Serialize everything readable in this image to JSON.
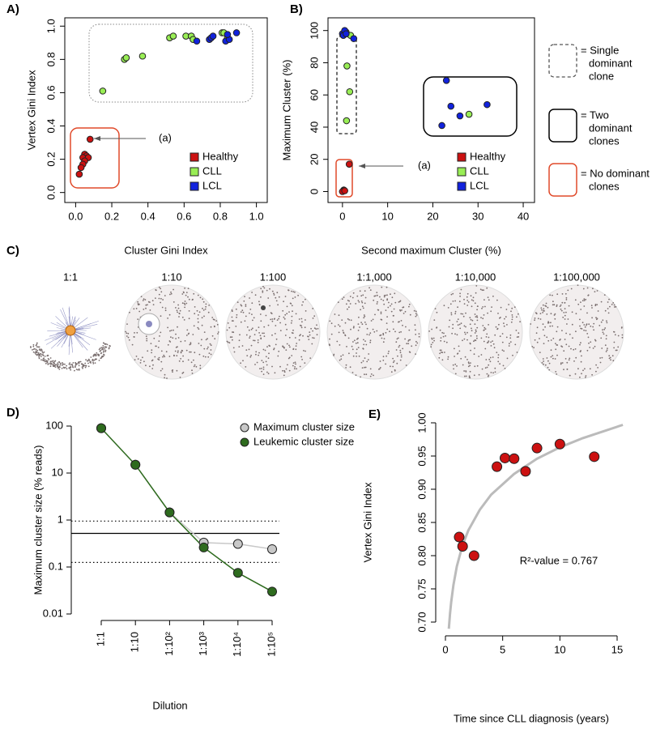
{
  "chart_data": [
    {
      "type": "scatter",
      "panel": "A)",
      "xlabel": "Cluster Gini Index",
      "ylabel": "Vertex Gini Index",
      "xlim": [
        -0.06,
        1.06
      ],
      "ylim": [
        -0.06,
        1.05
      ],
      "xticks": [
        {
          "value": 0,
          "label": "0.0"
        },
        0.2,
        0.4,
        0.6,
        0.8,
        {
          "value": 1,
          "label": "1.0"
        }
      ],
      "yticks": [
        {
          "value": 0,
          "label": "0.0"
        },
        0.2,
        0.4,
        0.6,
        0.8,
        {
          "value": 1,
          "label": "1.0"
        }
      ],
      "legend": "lower right",
      "annotation": "(a)",
      "series": [
        {
          "name": "Healthy",
          "color": "#cc1111",
          "x": [
            0.08,
            0.05,
            0.06,
            0.04,
            0.07,
            0.05,
            0.04,
            0.03,
            0.02
          ],
          "values": [
            0.32,
            0.23,
            0.22,
            0.21,
            0.21,
            0.19,
            0.17,
            0.15,
            0.11
          ]
        },
        {
          "name": "CLL",
          "color": "#99ee55",
          "x": [
            0.15,
            0.27,
            0.28,
            0.37,
            0.52,
            0.54,
            0.61,
            0.64,
            0.65,
            0.81,
            0.82,
            0.84
          ],
          "values": [
            0.61,
            0.8,
            0.81,
            0.82,
            0.93,
            0.94,
            0.94,
            0.94,
            0.92,
            0.96,
            0.96,
            0.93
          ]
        },
        {
          "name": "LCL",
          "color": "#1122dd",
          "x": [
            0.67,
            0.74,
            0.75,
            0.76,
            0.83,
            0.85,
            0.84,
            0.89
          ],
          "values": [
            0.91,
            0.92,
            0.93,
            0.94,
            0.91,
            0.92,
            0.95,
            0.96
          ]
        }
      ]
    },
    {
      "type": "scatter",
      "panel": "B)",
      "xlabel": "Second maximum Cluster (%)",
      "ylabel": "Maximum Cluster (%)",
      "xlim": [
        -3.2,
        42.5
      ],
      "ylim": [
        -6.8,
        107.9
      ],
      "xticks": [
        0,
        10,
        20,
        30,
        40
      ],
      "yticks": [
        0,
        20,
        40,
        60,
        80,
        100
      ],
      "legend": "lower right",
      "annotation": "(a)",
      "region_legend": [
        [
          "= Single",
          "dominant",
          "clone"
        ],
        [
          "= Two",
          "dominant",
          "clones"
        ],
        [
          "= No dominant",
          "clones"
        ]
      ],
      "series": [
        {
          "name": "Healthy",
          "color": "#cc1111",
          "x": [
            1.5,
            0.3,
            0.2,
            0,
            0.5
          ],
          "values": [
            17,
            1,
            0.5,
            0,
            0.5
          ]
        },
        {
          "name": "CLL",
          "color": "#99ee55",
          "x": [
            0.8,
            1,
            1.6,
            0.9,
            1.8,
            28
          ],
          "values": [
            99,
            78,
            62,
            44,
            97,
            48
          ]
        },
        {
          "name": "LCL",
          "color": "#1122dd",
          "x": [
            0,
            0.2,
            0.5,
            0.8,
            2.5,
            23,
            24,
            26,
            22,
            32
          ],
          "values": [
            98,
            97,
            100,
            98,
            95,
            69,
            53,
            47,
            41,
            54
          ]
        }
      ]
    },
    {
      "type": "network",
      "panel": "C)",
      "categories": [
        "1:1",
        "1:10",
        "1:100",
        "1:1,000",
        "1:10,000",
        "1:100,000"
      ]
    },
    {
      "type": "line",
      "panel": "D)",
      "xlabel": "Dilution",
      "ylabel": "Maximum cluster size (% reads)",
      "log_y": true,
      "categories": [
        "1:1",
        "1:10",
        "1:10²",
        "1:10³",
        "1:10⁴",
        "1:10⁵"
      ],
      "ylim": [
        0.01,
        100
      ],
      "yticks": [
        0.01,
        0.1,
        1,
        10,
        100
      ],
      "reference_lines": [
        {
          "value": 0.95,
          "style": "dotted"
        },
        {
          "value": 0.52,
          "style": "solid"
        },
        {
          "value": 0.125,
          "style": "dotted"
        }
      ],
      "legend": "upper right",
      "series": [
        {
          "name": "Maximum cluster size",
          "color": "#c8c8c8",
          "values": [
            90,
            15,
            1.45,
            0.33,
            0.31,
            0.24
          ]
        },
        {
          "name": "Leukemic cluster size",
          "color": "#2e6b1e",
          "values": [
            90,
            15,
            1.45,
            0.26,
            0.075,
            0.03
          ]
        }
      ]
    },
    {
      "type": "scatter",
      "panel": "E)",
      "xlabel": "Time since CLL diagnosis (years)",
      "ylabel": "Vertex Gini Index",
      "xlim": [
        0,
        15
      ],
      "ylim": [
        0.7,
        1.0
      ],
      "xticks": [
        0,
        5,
        10,
        15
      ],
      "yticks": [
        {
          "value": 0.7,
          "label": "0.70"
        },
        0.75,
        {
          "value": 0.8,
          "label": "0.80"
        },
        0.85,
        {
          "value": 0.9,
          "label": "0.90"
        },
        0.95,
        {
          "value": 1.0,
          "label": "1.00"
        }
      ],
      "annotation": "R²-value = 0.767",
      "fit": {
        "color": "#bbbbbb",
        "x": [
          0.3,
          0.4,
          0.5,
          0.7,
          1,
          1.5,
          2,
          3,
          4,
          6,
          8,
          10,
          12,
          15.5
        ],
        "values": [
          0.69,
          0.713,
          0.73,
          0.756,
          0.784,
          0.816,
          0.838,
          0.869,
          0.892,
          0.923,
          0.946,
          0.963,
          0.977,
          0.997
        ]
      },
      "series": [
        {
          "color": "#cc1111",
          "x": [
            1.2,
            1.5,
            2.5,
            4.5,
            5.2,
            6,
            7,
            8,
            10,
            13
          ],
          "values": [
            0.828,
            0.814,
            0.8,
            0.934,
            0.947,
            0.946,
            0.927,
            0.962,
            0.968,
            0.949
          ]
        }
      ]
    }
  ]
}
